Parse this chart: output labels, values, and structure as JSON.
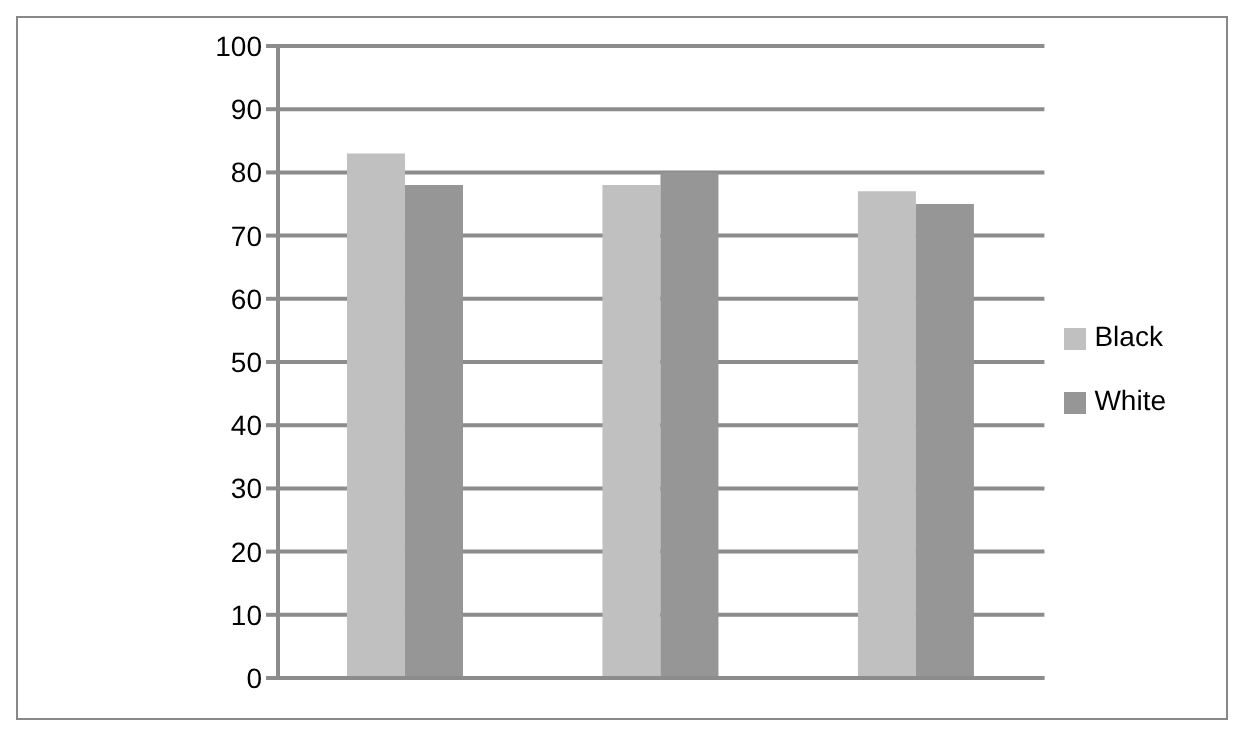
{
  "chart_data": {
    "type": "bar",
    "categories": [
      null,
      null,
      null
    ],
    "series": [
      {
        "name": "Black",
        "color": "#c0c0c0",
        "values": [
          83,
          78,
          77
        ]
      },
      {
        "name": "White",
        "color": "#969696",
        "values": [
          78,
          80,
          75
        ]
      }
    ],
    "ylim": [
      0,
      100
    ],
    "yticks": [
      0,
      10,
      20,
      30,
      40,
      50,
      60,
      70,
      80,
      90,
      100
    ],
    "grid": "y",
    "legend": "right"
  }
}
